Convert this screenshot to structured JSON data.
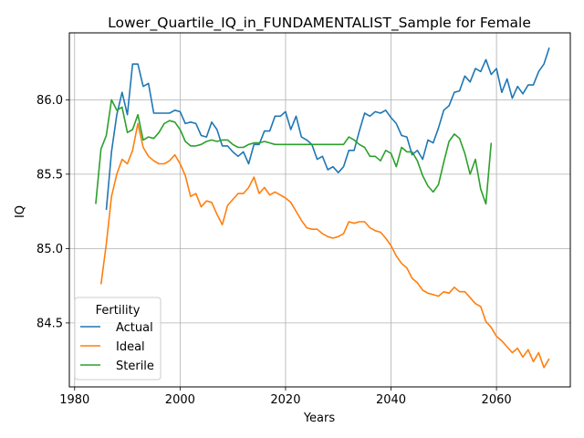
{
  "chart_data": {
    "type": "line",
    "title": "Lower_Quartile_IQ_in_FUNDAMENTALIST_Sample for Female",
    "xlabel": "Years",
    "ylabel": "IQ",
    "xlim": [
      1979,
      2074
    ],
    "ylim": [
      84.07,
      86.45
    ],
    "xticks": [
      1980,
      2000,
      2020,
      2040,
      2060
    ],
    "yticks": [
      84.5,
      85.0,
      85.5,
      86.0
    ],
    "ytick_labels": [
      "84.5",
      "85.0",
      "85.5",
      "86.0"
    ],
    "grid": true,
    "legend": {
      "title": "Fertility",
      "position": "lower-left"
    },
    "series": [
      {
        "name": "Actual",
        "color": "#1f77b4",
        "x": [
          1986,
          1987,
          1988,
          1989,
          1990,
          1991,
          1992,
          1993,
          1994,
          1995,
          1996,
          1997,
          1998,
          1999,
          2000,
          2001,
          2002,
          2003,
          2004,
          2005,
          2006,
          2007,
          2008,
          2009,
          2010,
          2011,
          2012,
          2013,
          2014,
          2015,
          2016,
          2017,
          2018,
          2019,
          2020,
          2021,
          2022,
          2023,
          2024,
          2025,
          2026,
          2027,
          2028,
          2029,
          2030,
          2031,
          2032,
          2033,
          2034,
          2035,
          2036,
          2037,
          2038,
          2039,
          2040,
          2041,
          2042,
          2043,
          2044,
          2045,
          2046,
          2047,
          2048,
          2049,
          2050,
          2051,
          2052,
          2053,
          2054,
          2055,
          2056,
          2057,
          2058,
          2059,
          2060,
          2061,
          2062,
          2063,
          2064,
          2065,
          2066,
          2067,
          2068,
          2069,
          2070
        ],
        "values": [
          85.26,
          85.65,
          85.9,
          86.05,
          85.9,
          86.24,
          86.24,
          86.09,
          86.11,
          85.91,
          85.91,
          85.91,
          85.91,
          85.93,
          85.92,
          85.84,
          85.85,
          85.84,
          85.76,
          85.75,
          85.85,
          85.8,
          85.69,
          85.69,
          85.65,
          85.62,
          85.65,
          85.57,
          85.7,
          85.7,
          85.79,
          85.79,
          85.89,
          85.89,
          85.92,
          85.8,
          85.89,
          85.75,
          85.73,
          85.7,
          85.6,
          85.62,
          85.53,
          85.55,
          85.51,
          85.55,
          85.66,
          85.66,
          85.79,
          85.91,
          85.89,
          85.92,
          85.91,
          85.93,
          85.88,
          85.84,
          85.76,
          85.75,
          85.63,
          85.66,
          85.6,
          85.73,
          85.71,
          85.81,
          85.93,
          85.96,
          86.05,
          86.06,
          86.16,
          86.12,
          86.21,
          86.19,
          86.27,
          86.17,
          86.21,
          86.05,
          86.14,
          86.01,
          86.09,
          86.04,
          86.1,
          86.1,
          86.19,
          86.24,
          86.35
        ]
      },
      {
        "name": "Ideal",
        "color": "#ff7f0e",
        "x": [
          1985,
          1986,
          1987,
          1988,
          1989,
          1990,
          1991,
          1992,
          1993,
          1994,
          1995,
          1996,
          1997,
          1998,
          1999,
          2000,
          2001,
          2002,
          2003,
          2004,
          2005,
          2006,
          2007,
          2008,
          2009,
          2010,
          2011,
          2012,
          2013,
          2014,
          2015,
          2016,
          2017,
          2018,
          2019,
          2020,
          2021,
          2022,
          2023,
          2024,
          2025,
          2026,
          2027,
          2028,
          2029,
          2030,
          2031,
          2032,
          2033,
          2034,
          2035,
          2036,
          2037,
          2038,
          2039,
          2040,
          2041,
          2042,
          2043,
          2044,
          2045,
          2046,
          2047,
          2048,
          2049,
          2050,
          2051,
          2052,
          2053,
          2054,
          2055,
          2056,
          2057,
          2058,
          2059,
          2060,
          2061,
          2062,
          2063,
          2064,
          2065,
          2066,
          2067,
          2068,
          2069,
          2070
        ],
        "values": [
          84.76,
          85.03,
          85.35,
          85.5,
          85.6,
          85.57,
          85.66,
          85.84,
          85.68,
          85.62,
          85.59,
          85.57,
          85.57,
          85.59,
          85.63,
          85.57,
          85.49,
          85.35,
          85.37,
          85.28,
          85.32,
          85.31,
          85.23,
          85.16,
          85.29,
          85.33,
          85.37,
          85.37,
          85.41,
          85.48,
          85.37,
          85.41,
          85.36,
          85.38,
          85.36,
          85.34,
          85.31,
          85.25,
          85.19,
          85.14,
          85.13,
          85.13,
          85.1,
          85.08,
          85.07,
          85.08,
          85.1,
          85.18,
          85.17,
          85.18,
          85.18,
          85.14,
          85.12,
          85.11,
          85.07,
          85.02,
          84.95,
          84.9,
          84.87,
          84.8,
          84.77,
          84.72,
          84.7,
          84.69,
          84.68,
          84.71,
          84.7,
          84.74,
          84.71,
          84.71,
          84.67,
          84.63,
          84.61,
          84.51,
          84.47,
          84.41,
          84.38,
          84.34,
          84.3,
          84.33,
          84.27,
          84.32,
          84.24,
          84.3,
          84.2,
          84.26
        ]
      },
      {
        "name": "Sterile",
        "color": "#2ca02c",
        "x": [
          1984,
          1985,
          1986,
          1987,
          1988,
          1989,
          1990,
          1991,
          1992,
          1993,
          1994,
          1995,
          1996,
          1997,
          1998,
          1999,
          2000,
          2001,
          2002,
          2003,
          2004,
          2005,
          2006,
          2007,
          2008,
          2009,
          2010,
          2011,
          2012,
          2013,
          2014,
          2015,
          2016,
          2017,
          2018,
          2019,
          2020,
          2021,
          2022,
          2023,
          2024,
          2025,
          2026,
          2027,
          2028,
          2029,
          2030,
          2031,
          2032,
          2033,
          2034,
          2035,
          2036,
          2037,
          2038,
          2039,
          2040,
          2041,
          2042,
          2043,
          2044,
          2045,
          2046,
          2047,
          2048,
          2049,
          2050,
          2051,
          2052,
          2053,
          2054,
          2055,
          2056,
          2057,
          2058,
          2059
        ],
        "values": [
          85.3,
          85.67,
          85.76,
          86.0,
          85.93,
          85.95,
          85.78,
          85.8,
          85.9,
          85.73,
          85.75,
          85.74,
          85.78,
          85.84,
          85.86,
          85.85,
          85.8,
          85.72,
          85.69,
          85.69,
          85.7,
          85.72,
          85.73,
          85.72,
          85.73,
          85.73,
          85.7,
          85.68,
          85.68,
          85.7,
          85.71,
          85.71,
          85.72,
          85.71,
          85.7,
          85.7,
          85.7,
          85.7,
          85.7,
          85.7,
          85.7,
          85.7,
          85.7,
          85.7,
          85.7,
          85.7,
          85.7,
          85.7,
          85.75,
          85.73,
          85.7,
          85.68,
          85.62,
          85.62,
          85.59,
          85.66,
          85.64,
          85.55,
          85.68,
          85.65,
          85.65,
          85.59,
          85.49,
          85.42,
          85.38,
          85.43,
          85.58,
          85.72,
          85.77,
          85.74,
          85.64,
          85.5,
          85.6,
          85.4,
          85.3,
          85.71
        ]
      }
    ]
  }
}
